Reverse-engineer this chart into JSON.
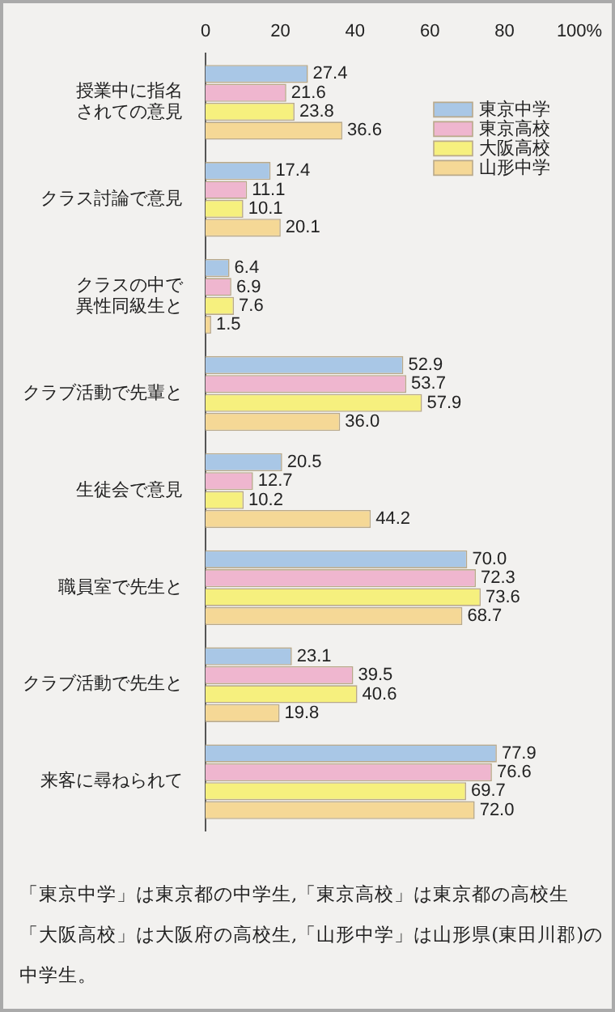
{
  "chart_data": {
    "type": "bar",
    "orientation": "horizontal",
    "categories": [
      "授業中に指名されての意見",
      "クラス討論で意見",
      "クラスの中で異性同級生と",
      "クラブ活動で先輩と",
      "生徒会で意見",
      "職員室で先生と",
      "クラブ活動で先生と",
      "来客に尋ねられて"
    ],
    "series": [
      {
        "name": "東京中学",
        "color": "#a9c7e6",
        "values": [
          27.4,
          17.4,
          6.4,
          52.9,
          20.5,
          70.0,
          23.1,
          77.9
        ],
        "value_labels": [
          "27.4",
          "17.4",
          "6.4",
          "52.9",
          "20.5",
          "70.0",
          "23.1",
          "77.9"
        ]
      },
      {
        "name": "東京高校",
        "color": "#efb6cf",
        "values": [
          21.6,
          11.1,
          6.9,
          53.7,
          12.7,
          72.3,
          39.5,
          76.6
        ],
        "value_labels": [
          "21.6",
          "11.1",
          "6.9",
          "53.7",
          "12.7",
          "72.3",
          "39.5",
          "76.6"
        ]
      },
      {
        "name": "大阪高校",
        "color": "#f6f07e",
        "values": [
          23.8,
          10.1,
          7.6,
          57.9,
          10.2,
          73.6,
          40.6,
          69.7
        ],
        "value_labels": [
          "23.8",
          "10.1",
          "7.6",
          "57.9",
          "10.2",
          "73.6",
          "40.6",
          "69.7"
        ]
      },
      {
        "name": "山形中学",
        "color": "#f5d896",
        "values": [
          36.6,
          20.1,
          1.5,
          36.0,
          44.2,
          68.7,
          19.8,
          72.0
        ],
        "value_labels": [
          "36.6",
          "20.1",
          "1.5",
          "36.0",
          "44.2",
          "68.7",
          "19.8",
          "72.0"
        ]
      }
    ],
    "xlim": [
      0,
      100
    ],
    "xticks": [
      0,
      20,
      40,
      60,
      80,
      {
        "value": 100,
        "label": "100%"
      }
    ],
    "grid": false,
    "legend": "top right",
    "annotations": [
      "「東京中学」は東京都の中学生,「東京高校」は東京都の高校生",
      "「大阪高校」は大阪府の高校生,「山形中学」は山形県(東田川郡)の中学生。"
    ]
  }
}
